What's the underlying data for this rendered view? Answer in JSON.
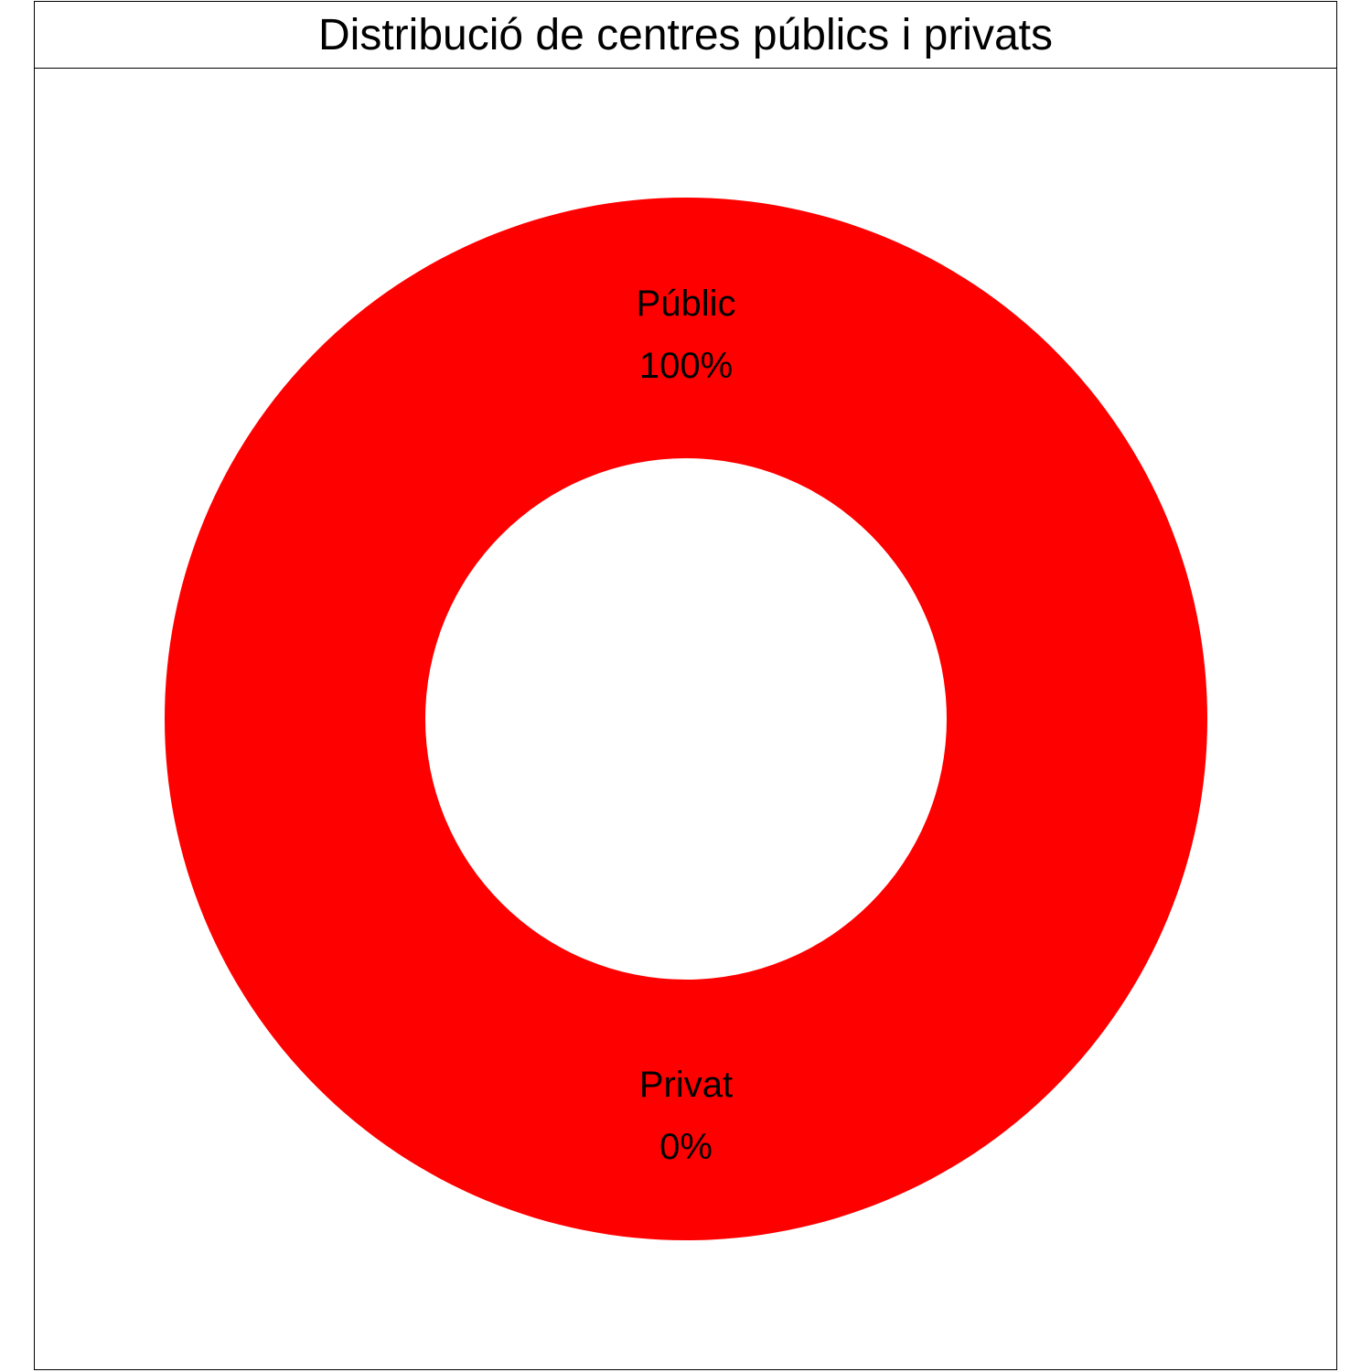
{
  "chart_data": {
    "type": "pie",
    "variant": "donut",
    "title": "Distribució de centres públics i privats",
    "slices": [
      {
        "label": "Públic",
        "value": 100,
        "pct_label": "100%",
        "color": "#ff0000"
      },
      {
        "label": "Privat",
        "value": 0,
        "pct_label": "0%",
        "color": "#00bfc4"
      }
    ],
    "legend": "none"
  }
}
